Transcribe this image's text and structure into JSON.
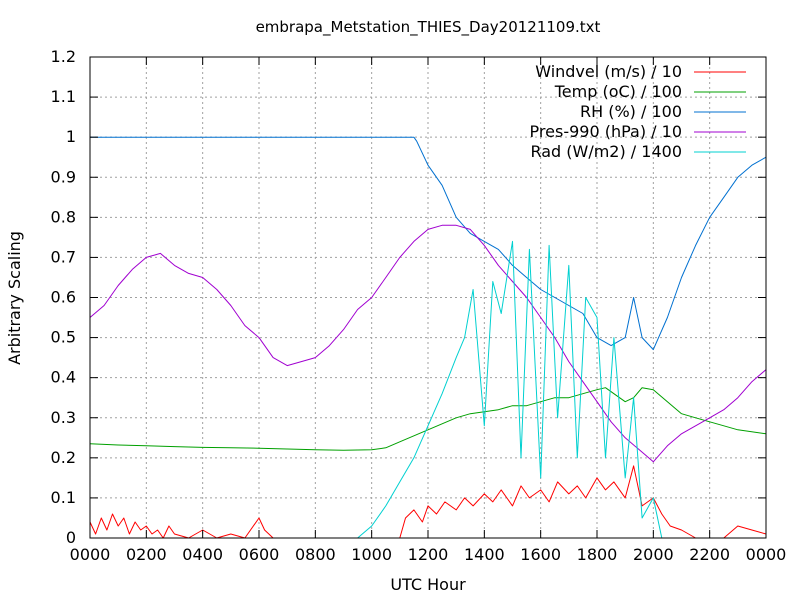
{
  "chart_data": {
    "type": "line",
    "title": "embrapa_Metstation_THIES_Day20121109.txt",
    "xlabel": "UTC Hour",
    "ylabel": "Arbitrary Scaling",
    "xlim": [
      0,
      24
    ],
    "ylim": [
      0,
      1.2
    ],
    "grid": true,
    "legend_position": "top-right",
    "x_ticks": [
      {
        "value": 0,
        "label": "0000"
      },
      {
        "value": 2,
        "label": "0200"
      },
      {
        "value": 4,
        "label": "0400"
      },
      {
        "value": 6,
        "label": "0600"
      },
      {
        "value": 8,
        "label": "0800"
      },
      {
        "value": 10,
        "label": "1000"
      },
      {
        "value": 12,
        "label": "1200"
      },
      {
        "value": 14,
        "label": "1400"
      },
      {
        "value": 16,
        "label": "1600"
      },
      {
        "value": 18,
        "label": "1800"
      },
      {
        "value": 20,
        "label": "2000"
      },
      {
        "value": 22,
        "label": "2200"
      },
      {
        "value": 24,
        "label": "0000"
      }
    ],
    "y_ticks": [
      {
        "value": 0,
        "label": "0"
      },
      {
        "value": 0.1,
        "label": "0.1"
      },
      {
        "value": 0.2,
        "label": "0.2"
      },
      {
        "value": 0.3,
        "label": "0.3"
      },
      {
        "value": 0.4,
        "label": "0.4"
      },
      {
        "value": 0.5,
        "label": "0.5"
      },
      {
        "value": 0.6,
        "label": "0.6"
      },
      {
        "value": 0.7,
        "label": "0.7"
      },
      {
        "value": 0.8,
        "label": "0.8"
      },
      {
        "value": 0.9,
        "label": "0.9"
      },
      {
        "value": 1.0,
        "label": "1"
      },
      {
        "value": 1.1,
        "label": "1.1"
      },
      {
        "value": 1.2,
        "label": "1.2"
      }
    ],
    "series": [
      {
        "name": "Windvel (m/s) / 10",
        "color": "#ff0000",
        "x": [
          0,
          0.2,
          0.4,
          0.6,
          0.8,
          1,
          1.2,
          1.4,
          1.6,
          1.8,
          2,
          2.2,
          2.4,
          2.6,
          2.8,
          3,
          3.5,
          4,
          4.5,
          5,
          5.5,
          6,
          6.2,
          6.5,
          7,
          7.5,
          8,
          8.5,
          9,
          9.5,
          10,
          10.5,
          11,
          11.2,
          11.5,
          11.8,
          12,
          12.3,
          12.6,
          13,
          13.3,
          13.6,
          14,
          14.3,
          14.6,
          15,
          15.3,
          15.6,
          16,
          16.3,
          16.6,
          17,
          17.3,
          17.6,
          18,
          18.3,
          18.6,
          19,
          19.3,
          19.6,
          20,
          20.3,
          20.6,
          21,
          21.5,
          22,
          22.5,
          23,
          23.5,
          24
        ],
        "values": [
          0.04,
          0.01,
          0.05,
          0.02,
          0.06,
          0.03,
          0.05,
          0.01,
          0.04,
          0.02,
          0.03,
          0.01,
          0.02,
          0,
          0.03,
          0.01,
          0,
          0.02,
          0,
          0.01,
          0,
          0.05,
          0.02,
          0,
          0,
          0,
          0,
          0,
          0,
          0,
          0,
          0,
          0,
          0.05,
          0.07,
          0.04,
          0.08,
          0.06,
          0.09,
          0.07,
          0.1,
          0.08,
          0.11,
          0.09,
          0.12,
          0.08,
          0.13,
          0.1,
          0.12,
          0.09,
          0.14,
          0.11,
          0.13,
          0.1,
          0.15,
          0.12,
          0.14,
          0.1,
          0.18,
          0.08,
          0.1,
          0.06,
          0.03,
          0.02,
          0,
          0,
          0,
          0.03,
          0.02,
          0.01
        ]
      },
      {
        "name": "Temp (oC) / 100",
        "color": "#00a000",
        "x": [
          0,
          1,
          2,
          3,
          4,
          5,
          6,
          7,
          8,
          9,
          10,
          10.5,
          11,
          11.5,
          12,
          12.5,
          13,
          13.5,
          14,
          14.5,
          15,
          15.5,
          16,
          16.5,
          17,
          17.5,
          18,
          18.3,
          18.6,
          19,
          19.3,
          19.6,
          20,
          20.5,
          21,
          21.5,
          22,
          22.5,
          23,
          24
        ],
        "values": [
          0.235,
          0.232,
          0.23,
          0.228,
          0.226,
          0.225,
          0.224,
          0.222,
          0.22,
          0.219,
          0.22,
          0.225,
          0.24,
          0.255,
          0.27,
          0.285,
          0.3,
          0.31,
          0.315,
          0.32,
          0.33,
          0.33,
          0.34,
          0.35,
          0.35,
          0.36,
          0.37,
          0.375,
          0.36,
          0.34,
          0.35,
          0.375,
          0.37,
          0.34,
          0.31,
          0.3,
          0.29,
          0.28,
          0.27,
          0.26
        ]
      },
      {
        "name": "RH (%) / 100",
        "color": "#0070d0",
        "x": [
          0,
          11.5,
          11.6,
          12,
          12.5,
          13,
          13.5,
          14,
          14.5,
          15,
          15.5,
          16,
          16.5,
          17,
          17.5,
          18,
          18.5,
          19,
          19.3,
          19.6,
          20,
          20.5,
          21,
          21.5,
          22,
          22.5,
          23,
          23.5,
          24
        ],
        "values": [
          1,
          1,
          0.99,
          0.93,
          0.88,
          0.8,
          0.76,
          0.74,
          0.72,
          0.68,
          0.65,
          0.62,
          0.6,
          0.58,
          0.56,
          0.5,
          0.48,
          0.5,
          0.6,
          0.5,
          0.47,
          0.55,
          0.65,
          0.73,
          0.8,
          0.85,
          0.9,
          0.93,
          0.95
        ]
      },
      {
        "name": "Pres-990 (hPa) / 10",
        "color": "#a000d0",
        "x": [
          0,
          0.5,
          1,
          1.5,
          2,
          2.5,
          3,
          3.5,
          4,
          4.5,
          5,
          5.5,
          6,
          6.5,
          7,
          7.5,
          8,
          8.5,
          9,
          9.5,
          10,
          10.5,
          11,
          11.5,
          12,
          12.5,
          13,
          13.5,
          14,
          14.5,
          15,
          15.5,
          16,
          16.5,
          17,
          17.5,
          18,
          18.5,
          19,
          19.5,
          20,
          20.5,
          21,
          21.5,
          22,
          22.5,
          23,
          23.5,
          24
        ],
        "values": [
          0.55,
          0.58,
          0.63,
          0.67,
          0.7,
          0.71,
          0.68,
          0.66,
          0.65,
          0.62,
          0.58,
          0.53,
          0.5,
          0.45,
          0.43,
          0.44,
          0.45,
          0.48,
          0.52,
          0.57,
          0.6,
          0.65,
          0.7,
          0.74,
          0.77,
          0.78,
          0.78,
          0.77,
          0.73,
          0.68,
          0.64,
          0.6,
          0.55,
          0.5,
          0.44,
          0.39,
          0.34,
          0.29,
          0.25,
          0.22,
          0.19,
          0.23,
          0.26,
          0.28,
          0.3,
          0.32,
          0.35,
          0.39,
          0.42
        ]
      },
      {
        "name": "Rad (W/m2) / 1400",
        "color": "#00d0d0",
        "x": [
          0,
          9.5,
          10,
          10.5,
          11,
          11.5,
          12,
          12.5,
          13,
          13.3,
          13.6,
          14,
          14.3,
          14.6,
          15,
          15.3,
          15.6,
          16,
          16.3,
          16.6,
          17,
          17.3,
          17.6,
          18,
          18.3,
          18.6,
          19,
          19.3,
          19.6,
          20,
          20.3,
          20.6,
          21,
          22,
          24
        ],
        "values": [
          0,
          0,
          0.03,
          0.08,
          0.14,
          0.2,
          0.28,
          0.36,
          0.45,
          0.5,
          0.62,
          0.28,
          0.64,
          0.56,
          0.74,
          0.2,
          0.72,
          0.15,
          0.73,
          0.3,
          0.68,
          0.2,
          0.6,
          0.55,
          0.2,
          0.5,
          0.15,
          0.35,
          0.05,
          0.1,
          0,
          0,
          0,
          0,
          0
        ]
      }
    ]
  }
}
